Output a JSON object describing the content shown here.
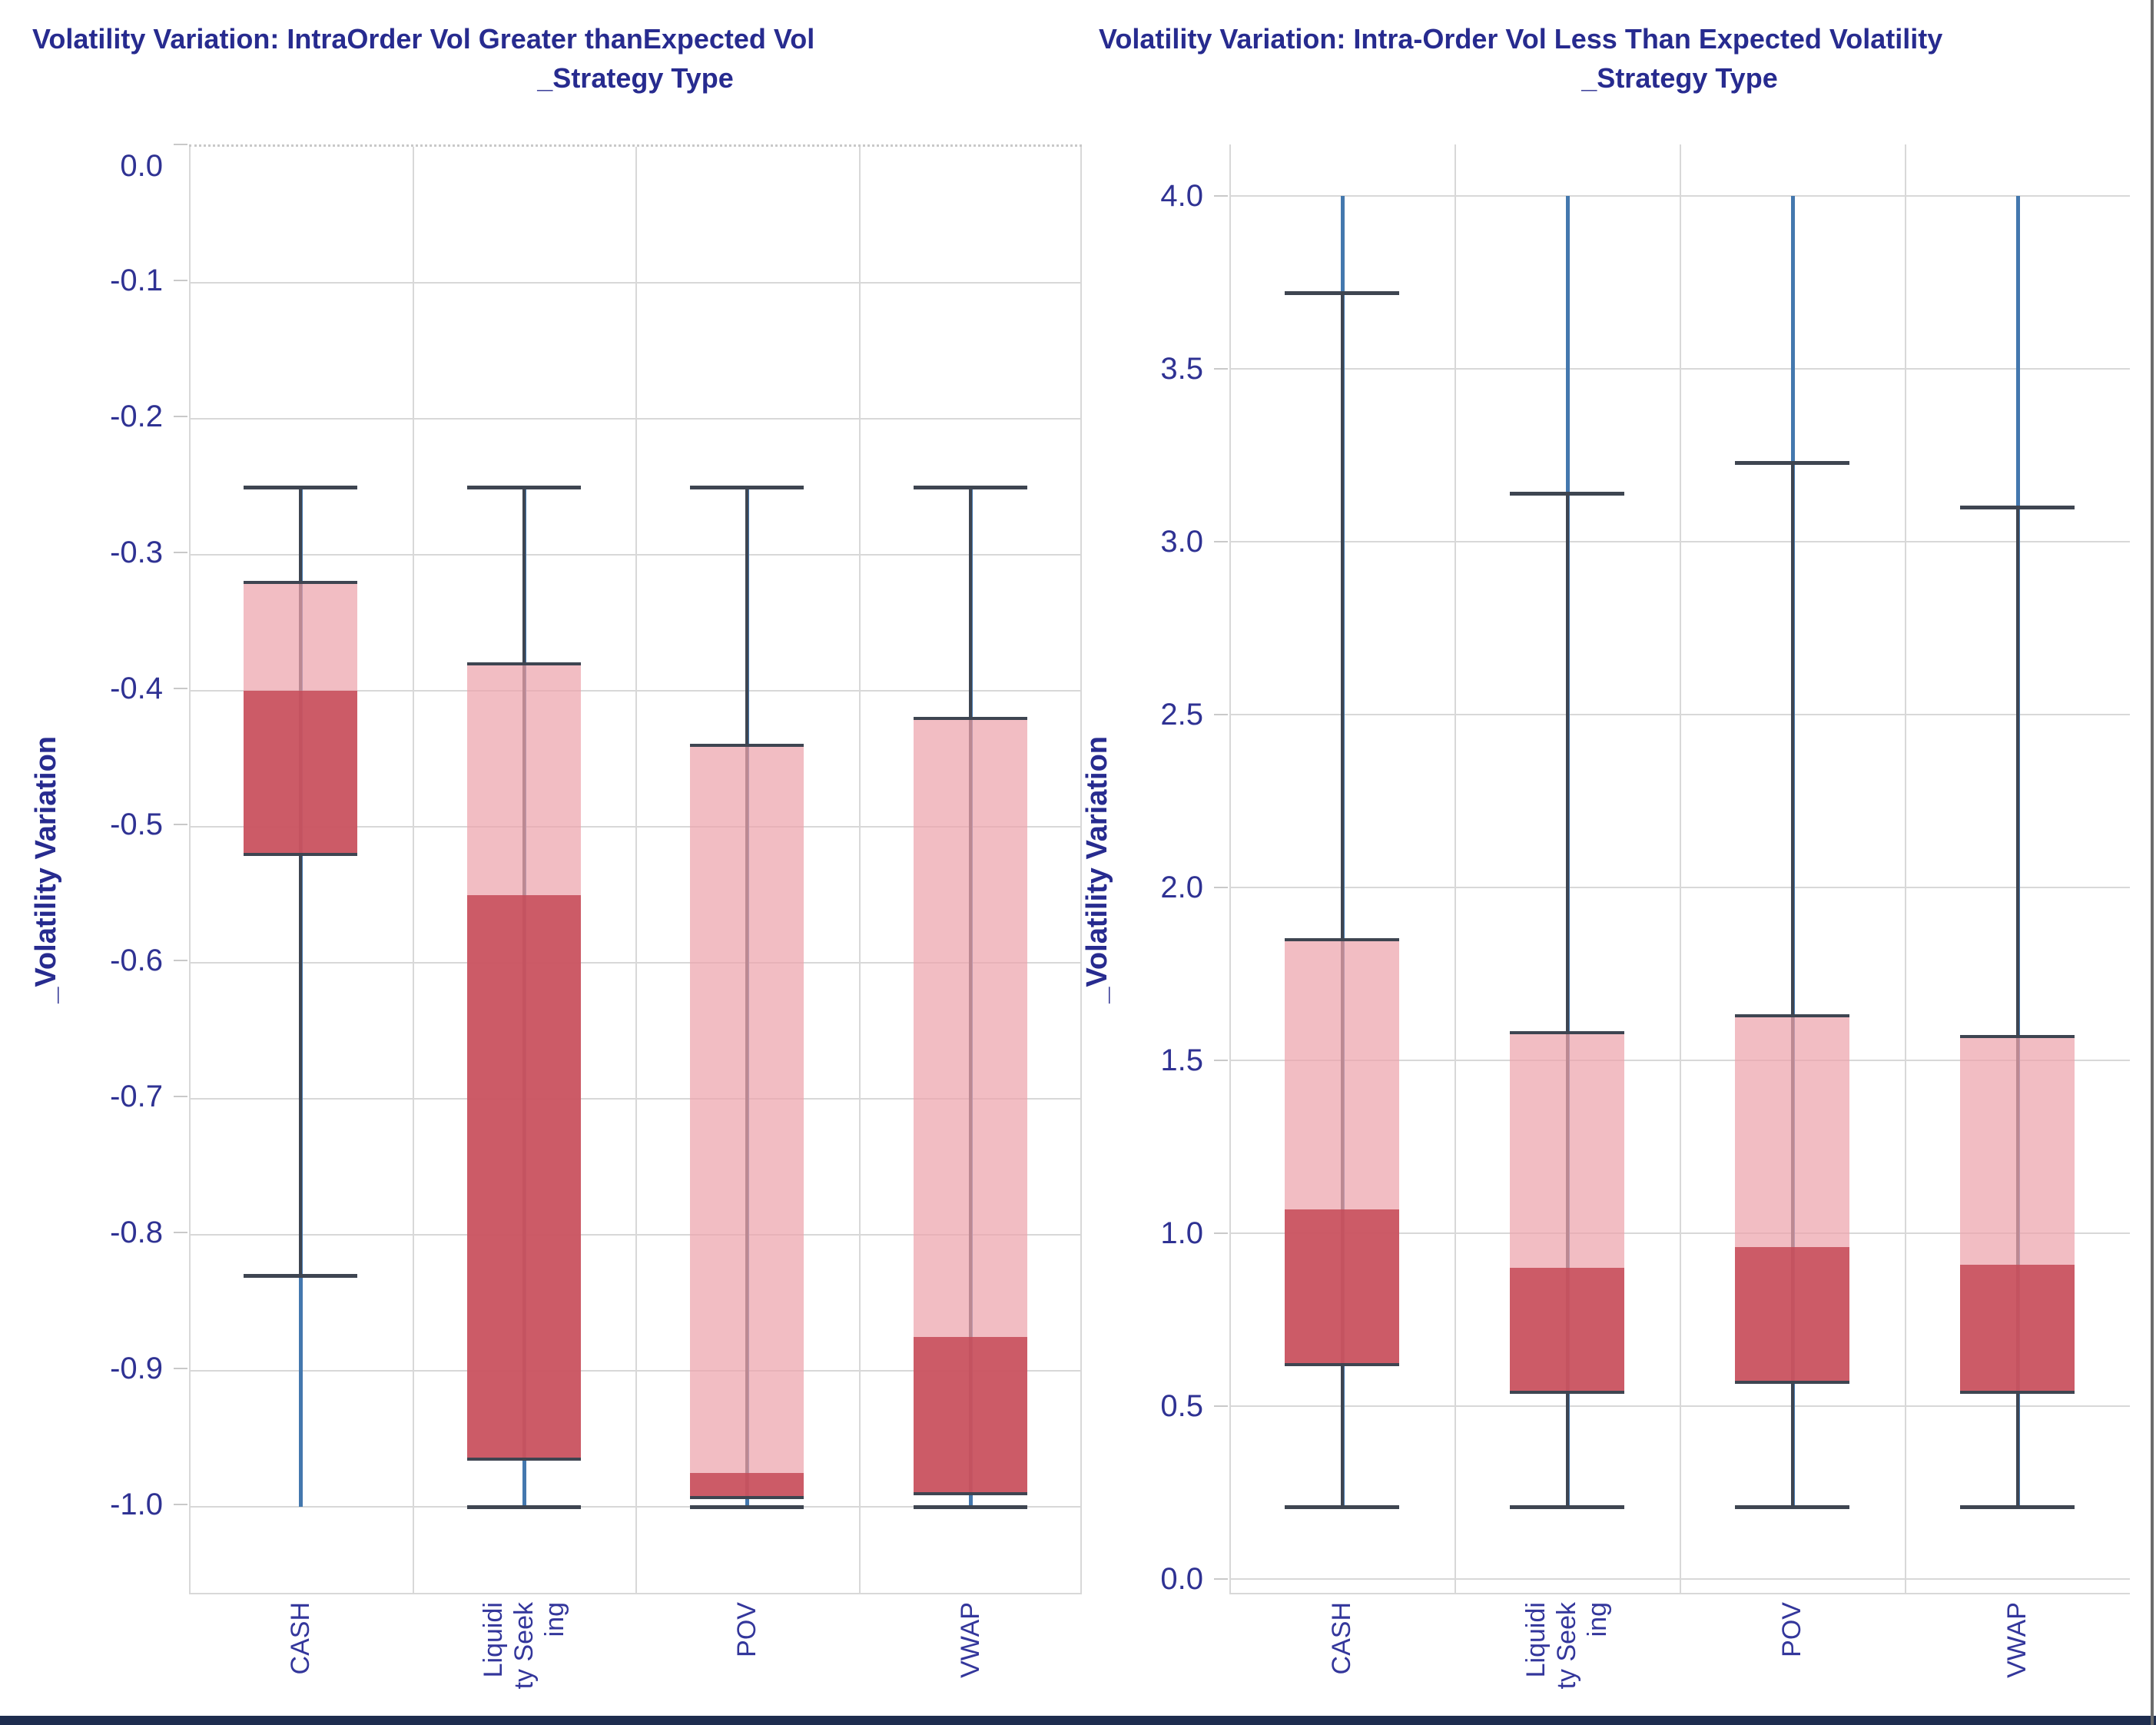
{
  "colors": {
    "text_navy": "#272B8F",
    "tick_navy": "#2F3293",
    "box_light_fill": "rgba(237,164,172,0.72)",
    "box_dark_fill": "rgba(197,74,87,0.85)",
    "whisker": "#3E4551",
    "range_line_blue": "#4478AE",
    "gridline": "#D8D8D8",
    "bottom_bar": "#1E2D4F",
    "background": "#FFFFFF"
  },
  "chart_data": [
    {
      "type": "box",
      "title": "Volatility Variation: IntraOrder Vol Greater thanExpected Vol",
      "x_axis_title": "_Strategy Type",
      "y_axis_title": "_Volatility Variation",
      "categories": [
        "CASH",
        "Liquidity Seeking",
        "POV",
        "VWAP"
      ],
      "category_label_lines": [
        [
          "CASH"
        ],
        [
          "Liquidi",
          "ty Seek",
          "ing"
        ],
        [
          "POV"
        ],
        [
          "VWAP"
        ]
      ],
      "y_ticks": [
        {
          "v": 0.0,
          "label": "0.0"
        },
        {
          "v": -0.1,
          "label": "-0.1"
        },
        {
          "v": -0.2,
          "label": "-0.2"
        },
        {
          "v": -0.3,
          "label": "-0.3"
        },
        {
          "v": -0.4,
          "label": "-0.4"
        },
        {
          "v": -0.5,
          "label": "-0.5"
        },
        {
          "v": -0.6,
          "label": "-0.6"
        },
        {
          "v": -0.7,
          "label": "-0.7"
        },
        {
          "v": -0.8,
          "label": "-0.8"
        },
        {
          "v": -0.9,
          "label": "-0.9"
        },
        {
          "v": -1.0,
          "label": "-1.0"
        }
      ],
      "ylim": [
        0.0,
        -1.063
      ],
      "grid": true,
      "legend": "none",
      "dotted_top": true,
      "right_border": true,
      "nudge_top_label": true,
      "boxes": [
        {
          "category": "CASH",
          "whisker_high": -0.25,
          "q_high": -0.32,
          "median": -0.4,
          "q_low": -0.52,
          "whisker_low": -0.83,
          "range_high": -0.25,
          "range_low": -1.0,
          "stem_low": true
        },
        {
          "category": "Liquidity Seeking",
          "whisker_high": -0.25,
          "q_high": -0.38,
          "median": -0.55,
          "q_low": -0.965,
          "whisker_low": -1.0,
          "range_high": -0.25,
          "range_low": -1.0,
          "stem_low": false
        },
        {
          "category": "POV",
          "whisker_high": -0.25,
          "q_high": -0.44,
          "median": -0.975,
          "q_low": -0.993,
          "whisker_low": -1.0,
          "range_high": -0.25,
          "range_low": -1.0,
          "stem_low": false
        },
        {
          "category": "VWAP",
          "whisker_high": -0.25,
          "q_high": -0.42,
          "median": -0.875,
          "q_low": -0.99,
          "whisker_low": -1.0,
          "range_high": -0.25,
          "range_low": -1.0,
          "stem_low": false
        }
      ]
    },
    {
      "type": "box",
      "title": "Volatility Variation: Intra-Order Vol Less Than Expected Volatility",
      "x_axis_title": "_Strategy Type",
      "y_axis_title": "_Volatility Variation",
      "categories": [
        "CASH",
        "Liquidity Seeking",
        "POV",
        "VWAP"
      ],
      "category_label_lines": [
        [
          "CASH"
        ],
        [
          "Liquidi",
          "ty Seek",
          "ing"
        ],
        [
          "POV"
        ],
        [
          "VWAP"
        ]
      ],
      "y_ticks": [
        {
          "v": 4.0,
          "label": "4.0"
        },
        {
          "v": 3.5,
          "label": "3.5"
        },
        {
          "v": 3.0,
          "label": "3.0"
        },
        {
          "v": 2.5,
          "label": "2.5"
        },
        {
          "v": 2.0,
          "label": "2.0"
        },
        {
          "v": 1.5,
          "label": "1.5"
        },
        {
          "v": 1.0,
          "label": "1.0"
        },
        {
          "v": 0.5,
          "label": "0.5"
        },
        {
          "v": 0.0,
          "label": "0.0"
        }
      ],
      "ylim": [
        4.15,
        -0.04
      ],
      "grid": true,
      "legend": "none",
      "dotted_top": false,
      "right_border": false,
      "nudge_top_label": false,
      "boxes": [
        {
          "category": "CASH",
          "whisker_high": 3.72,
          "q_high": 1.85,
          "median": 1.07,
          "q_low": 0.62,
          "whisker_low": 0.21,
          "range_high": 4.0,
          "range_low": 0.21,
          "stem_low": true
        },
        {
          "category": "Liquidity Seeking",
          "whisker_high": 3.14,
          "q_high": 1.58,
          "median": 0.9,
          "q_low": 0.54,
          "whisker_low": 0.21,
          "range_high": 4.0,
          "range_low": 0.21,
          "stem_low": true
        },
        {
          "category": "POV",
          "whisker_high": 3.23,
          "q_high": 1.63,
          "median": 0.96,
          "q_low": 0.57,
          "whisker_low": 0.21,
          "range_high": 4.0,
          "range_low": 0.21,
          "stem_low": true
        },
        {
          "category": "VWAP",
          "whisker_high": 3.1,
          "q_high": 1.57,
          "median": 0.91,
          "q_low": 0.54,
          "whisker_low": 0.21,
          "range_high": 4.0,
          "range_low": 0.21,
          "stem_low": true
        }
      ]
    }
  ]
}
